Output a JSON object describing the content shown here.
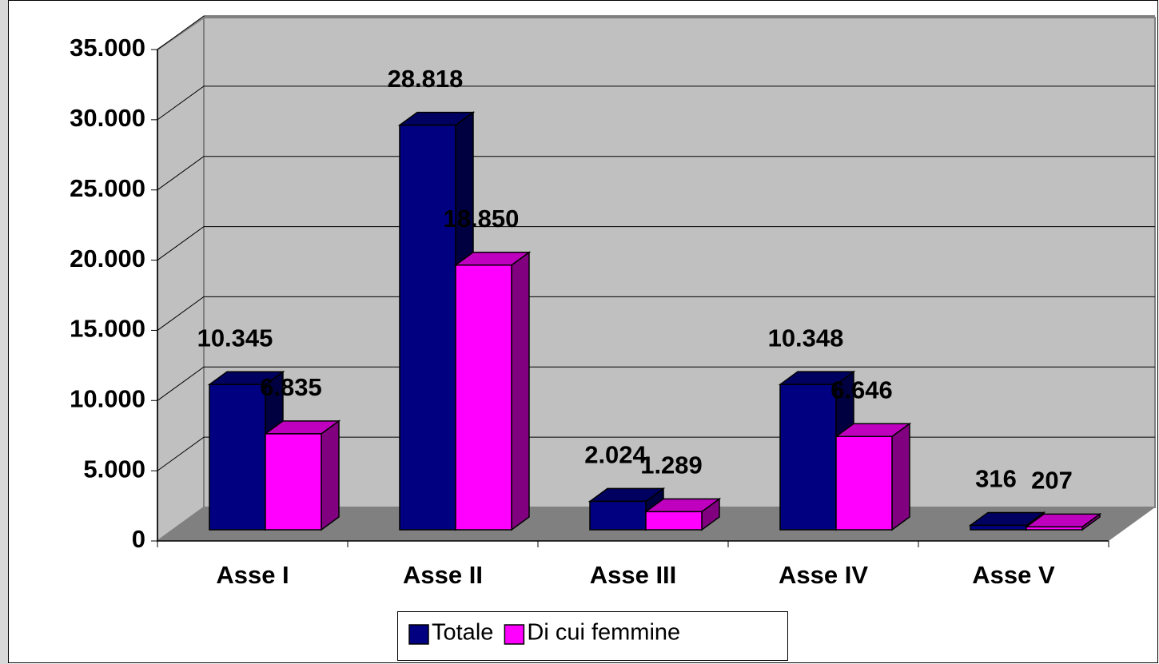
{
  "chart_data": {
    "type": "bar3d",
    "categories": [
      "Asse I",
      "Asse II",
      "Asse III",
      "Asse IV",
      "Asse V"
    ],
    "series": [
      {
        "name": "Totale",
        "color": "#000080",
        "values": [
          10345,
          28818,
          2024,
          10348,
          316
        ],
        "value_labels": [
          "10.345",
          "28.818",
          "2.024",
          "10.348",
          "316"
        ]
      },
      {
        "name": "Di cui femmine",
        "color": "#ff00ff",
        "values": [
          6835,
          18850,
          1289,
          6646,
          207
        ],
        "value_labels": [
          "6.835",
          "18.850",
          "1.289",
          "6.646",
          "207"
        ]
      }
    ],
    "ylim": [
      0,
      35000
    ],
    "yticks": [
      0,
      {
        "value": 5000,
        "label": "5.000"
      },
      {
        "value": 10000,
        "label": "10.000"
      },
      {
        "value": 15000,
        "label": "15.000"
      },
      {
        "value": 20000,
        "label": "20.000"
      },
      {
        "value": 25000,
        "label": "25.000"
      },
      {
        "value": 30000,
        "label": "30.000"
      },
      {
        "value": 35000,
        "label": "35.000"
      }
    ],
    "grid": true,
    "legend": "bottom"
  }
}
